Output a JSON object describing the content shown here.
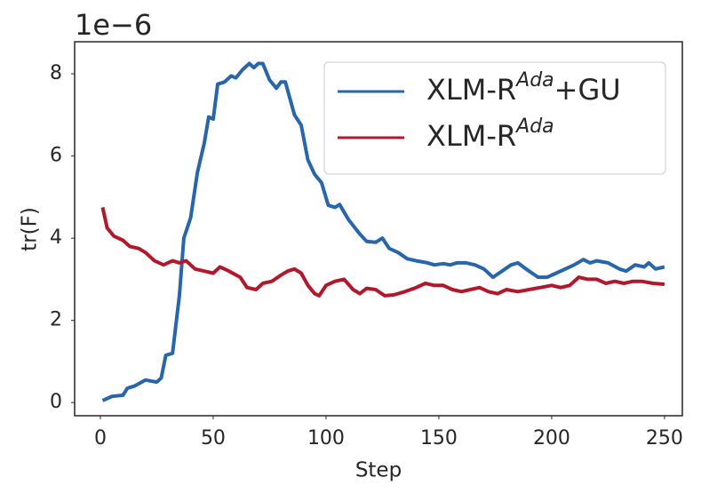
{
  "chart_data": {
    "type": "line",
    "x_label": "Step",
    "y_label": "tr(F)",
    "y_offset_label": "1e−6",
    "xlim": [
      -11.4,
      257.9
    ],
    "xticks": [
      0,
      50,
      100,
      150,
      200,
      250
    ],
    "ylim": [
      -0.32,
      8.78
    ],
    "yticks": [
      0,
      2,
      4,
      6,
      8
    ],
    "grid": false,
    "legend": "upper right",
    "series": [
      {
        "name": [
          "XLM-R",
          "Ada",
          "+GU"
        ],
        "color": "#2866ac",
        "x": [
          1,
          5,
          10,
          12,
          15,
          20,
          25,
          27,
          29,
          32,
          35,
          37,
          40,
          43,
          46,
          48,
          50,
          52,
          55,
          58,
          60,
          63,
          66,
          68,
          70,
          72,
          75,
          78,
          80,
          82,
          86,
          89,
          92,
          95,
          98,
          101,
          104,
          106,
          110,
          115,
          118,
          122,
          125,
          128,
          132,
          136,
          140,
          145,
          148,
          152,
          155,
          158,
          162,
          166,
          170,
          174,
          178,
          182,
          185,
          190,
          194,
          198,
          202,
          206,
          210,
          214,
          217,
          220,
          225,
          230,
          233,
          237,
          241,
          243,
          246,
          250
        ],
        "values": [
          0.05,
          0.15,
          0.18,
          0.35,
          0.4,
          0.55,
          0.5,
          0.6,
          1.15,
          1.2,
          2.6,
          4.0,
          4.5,
          5.6,
          6.3,
          6.95,
          6.9,
          7.75,
          7.8,
          7.95,
          7.9,
          8.1,
          8.25,
          8.15,
          8.25,
          8.25,
          7.85,
          7.65,
          7.8,
          7.8,
          7.0,
          6.75,
          5.9,
          5.55,
          5.35,
          4.8,
          4.75,
          4.82,
          4.45,
          4.1,
          3.92,
          3.9,
          4.0,
          3.75,
          3.65,
          3.5,
          3.45,
          3.4,
          3.35,
          3.38,
          3.35,
          3.4,
          3.4,
          3.35,
          3.25,
          3.05,
          3.2,
          3.35,
          3.4,
          3.2,
          3.05,
          3.05,
          3.15,
          3.25,
          3.35,
          3.48,
          3.4,
          3.45,
          3.4,
          3.25,
          3.2,
          3.35,
          3.3,
          3.4,
          3.25,
          3.3
        ]
      },
      {
        "name": [
          "XLM-R",
          "Ada"
        ],
        "color": "#b2182b",
        "x": [
          1,
          3,
          6,
          10,
          13,
          17,
          20,
          24,
          28,
          32,
          35,
          38,
          42,
          46,
          50,
          53,
          57,
          62,
          65,
          69,
          72,
          76,
          80,
          83,
          86,
          89,
          92,
          95,
          97,
          100,
          104,
          108,
          112,
          115,
          118,
          122,
          126,
          130,
          135,
          140,
          144,
          148,
          152,
          156,
          160,
          164,
          168,
          172,
          176,
          180,
          185,
          190,
          195,
          200,
          204,
          208,
          212,
          216,
          220,
          224,
          228,
          232,
          236,
          240,
          245,
          250
        ],
        "values": [
          4.75,
          4.25,
          4.05,
          3.95,
          3.8,
          3.75,
          3.65,
          3.45,
          3.35,
          3.45,
          3.4,
          3.45,
          3.25,
          3.2,
          3.15,
          3.3,
          3.2,
          3.05,
          2.8,
          2.75,
          2.9,
          2.95,
          3.1,
          3.2,
          3.25,
          3.15,
          2.85,
          2.65,
          2.6,
          2.85,
          2.95,
          3.0,
          2.75,
          2.65,
          2.78,
          2.75,
          2.6,
          2.62,
          2.7,
          2.8,
          2.9,
          2.85,
          2.85,
          2.75,
          2.7,
          2.75,
          2.8,
          2.7,
          2.65,
          2.75,
          2.7,
          2.75,
          2.8,
          2.85,
          2.8,
          2.85,
          3.05,
          3.0,
          3.0,
          2.9,
          2.95,
          2.9,
          2.95,
          2.95,
          2.9,
          2.88
        ]
      }
    ]
  }
}
